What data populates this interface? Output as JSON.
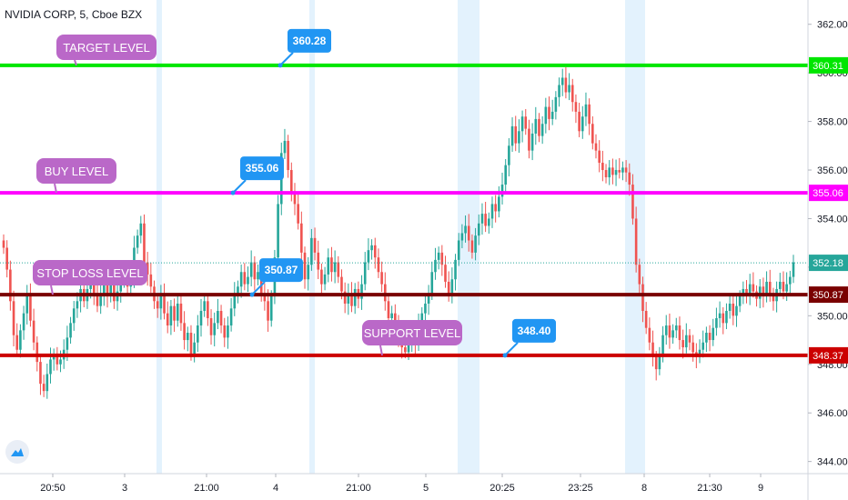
{
  "header": {
    "symbol_title": "NVIDIA CORP, 5, Cboe BZX"
  },
  "colors": {
    "up": "#26a69a",
    "down": "#ef5350",
    "target": "#00e600",
    "buy": "#ff00ff",
    "stop": "#7a0000",
    "support": "#cc0000",
    "callout_blue": "#2196f3",
    "label_purple": "#ba68c8",
    "session_shade": "#e3f2fd"
  },
  "icons": {
    "brand": "tradingview-logo-icon"
  },
  "chart_data": {
    "type": "candlestick",
    "title": "NVIDIA CORP, 5, Cboe BZX",
    "ylim": [
      343.5,
      363.0
    ],
    "y_ticks": [
      "362.00",
      "360.00",
      "358.00",
      "356.00",
      "354.00",
      "352.00",
      "350.00",
      "348.00",
      "346.00",
      "344.00"
    ],
    "x_ticks": [
      "20:50",
      "3",
      "21:00",
      "4",
      "21:00",
      "5",
      "20:25",
      "23:25",
      "8",
      "21:30",
      "9"
    ],
    "last_price": 352.18,
    "levels": [
      {
        "name": "TARGET LEVEL",
        "value": 360.31,
        "axis_label": "360.31",
        "callout": "360.28",
        "color_key": "target"
      },
      {
        "name": "BUY LEVEL",
        "value": 355.06,
        "axis_label": "355.06",
        "callout": "355.06",
        "color_key": "buy"
      },
      {
        "name": "STOP LOSS LEVEL",
        "value": 350.87,
        "axis_label": "350.87",
        "callout": "350.87",
        "color_key": "stop"
      },
      {
        "name": "SUPPORT LEVEL",
        "value": 348.37,
        "axis_label": "348.37",
        "callout": "348.40",
        "color_key": "support"
      }
    ],
    "series": [
      {
        "closes": [
          352.8,
          351.9,
          350.6,
          349.2,
          348.6,
          349.4,
          350.1,
          350.9,
          349.8,
          348.9,
          348.1,
          347.2,
          346.9,
          347.6,
          348.2,
          348.4,
          348.0,
          348.2,
          348.6,
          349.1,
          349.7,
          350.3,
          350.6,
          351.1,
          350.6,
          351.1,
          351.3,
          350.9,
          350.4,
          350.8,
          351.4,
          350.8,
          351.3,
          350.6,
          351.0,
          351.4,
          351.7,
          351.2,
          351.6,
          352.8,
          353.3,
          353.8,
          352.2,
          351.7,
          351.2,
          350.6,
          350.3,
          350.9,
          350.1,
          349.6,
          350.4,
          349.8,
          350.5,
          349.7,
          349.0,
          349.3,
          348.4,
          348.9,
          349.6,
          350.2,
          350.6,
          349.9,
          349.2,
          349.7,
          350.2,
          349.6,
          349.1,
          349.6,
          350.3,
          350.9,
          351.2,
          351.8,
          351.3,
          351.6,
          352.2,
          351.5,
          351.8,
          350.9,
          350.6,
          349.8,
          350.8,
          352.4,
          354.6,
          356.7,
          357.2,
          356.0,
          355.1,
          354.6,
          353.8,
          352.6,
          351.5,
          352.1,
          353.2,
          352.6,
          351.9,
          351.3,
          351.7,
          352.4,
          351.8,
          352.2,
          351.6,
          351.0,
          350.5,
          350.9,
          350.4,
          351.1,
          350.7,
          351.3,
          352.2,
          352.7,
          352.9,
          352.4,
          351.8,
          351.3,
          350.6,
          349.9,
          350.1,
          349.6,
          349.1,
          348.7,
          348.5,
          348.9,
          349.3,
          348.8,
          349.6,
          350.1,
          350.5,
          350.9,
          351.8,
          352.3,
          352.6,
          352.1,
          351.4,
          350.9,
          351.5,
          352.3,
          353.1,
          353.4,
          353.7,
          353.1,
          352.6,
          353.3,
          353.8,
          354.2,
          353.7,
          354.0,
          354.6,
          354.3,
          354.9,
          355.4,
          356.2,
          357.0,
          357.8,
          357.1,
          357.6,
          358.2,
          357.7,
          356.8,
          357.5,
          358.1,
          357.4,
          357.9,
          358.6,
          358.1,
          358.4,
          359.0,
          359.5,
          359.8,
          359.2,
          359.5,
          358.8,
          358.4,
          357.6,
          358.2,
          358.7,
          357.9,
          357.1,
          356.8,
          356.3,
          356.0,
          355.7,
          356.1,
          355.8,
          356.0,
          355.9,
          356.1,
          355.9,
          355.4,
          354.0,
          352.1,
          351.3,
          350.2,
          349.5,
          348.9,
          348.3,
          347.8,
          348.4,
          349.2,
          349.6,
          349.1,
          349.4,
          349.6,
          349.0,
          348.7,
          349.2,
          348.9,
          348.5,
          348.3,
          348.6,
          348.9,
          349.3,
          349.0,
          349.5,
          349.9,
          350.1,
          349.7,
          350.2,
          350.5,
          350.0,
          350.4,
          350.8,
          351.1,
          350.9,
          351.3,
          351.0,
          350.7,
          351.2,
          350.8,
          351.4,
          350.9,
          350.6,
          351.1,
          351.4,
          351.0,
          351.3,
          351.6,
          352.2
        ]
      }
    ]
  }
}
